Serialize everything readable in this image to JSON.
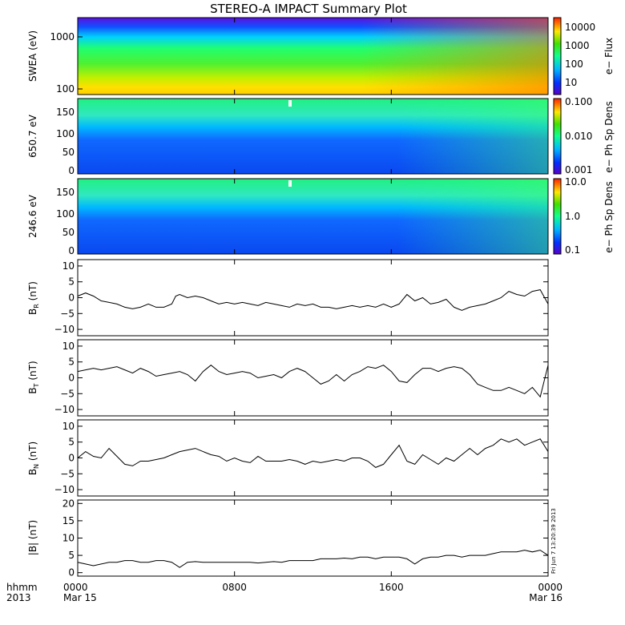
{
  "chart_data": {
    "title": "STEREO-A IMPACT Summary Plot",
    "x_axis": {
      "corner_labels": [
        "hhmm",
        "2013"
      ],
      "ticks": [
        {
          "hhmm": "0000",
          "date": "Mar 15",
          "hour": 0
        },
        {
          "hhmm": "0800",
          "date": "",
          "hour": 8
        },
        {
          "hhmm": "1600",
          "date": "",
          "hour": 16
        },
        {
          "hhmm": "0000",
          "date": "Mar 16",
          "hour": 24
        }
      ],
      "range_hours": [
        0,
        24
      ]
    },
    "timestamp": "Fri Jun  7 13:20:39 2013",
    "panels": [
      {
        "id": "swea",
        "type": "heatmap",
        "ylabel": "SWEA (eV)",
        "yscale": "log",
        "ylim": [
          90,
          2000
        ],
        "yticks": [
          "1000",
          "100"
        ],
        "colorbar": {
          "label": "e− Flux",
          "scale": "log",
          "range": [
            3,
            30000
          ],
          "ticks": [
            "10000",
            "1000",
            "100",
            "10"
          ]
        }
      },
      {
        "id": "pad-650",
        "type": "heatmap",
        "ylabel": "650.7 eV",
        "yscale": "linear",
        "ylim": [
          0,
          180
        ],
        "yticks": [
          "150",
          "100",
          "50",
          "0"
        ],
        "colorbar": {
          "label": "e− Ph Sp Dens",
          "scale": "log",
          "range": [
            0.001,
            0.1
          ],
          "ticks": [
            "0.100",
            "0.010",
            "0.001"
          ]
        }
      },
      {
        "id": "pad-246",
        "type": "heatmap",
        "ylabel": "246.6 eV",
        "yscale": "linear",
        "ylim": [
          0,
          180
        ],
        "yticks": [
          "150",
          "100",
          "50",
          "0"
        ],
        "colorbar": {
          "label": "e− Ph Sp Dens",
          "scale": "log",
          "range": [
            0.1,
            10
          ],
          "ticks": [
            "10.0",
            "1.0",
            "0.1"
          ]
        }
      },
      {
        "id": "br",
        "type": "line",
        "ylabel_main": "B",
        "ylabel_sub": "R",
        "ylabel_unit": "(nT)",
        "ylim": [
          -12,
          12
        ],
        "yticks": [
          "10",
          "5",
          "0",
          "−5",
          "−10"
        ],
        "x": [
          0,
          0.4,
          0.8,
          1.2,
          1.6,
          2.0,
          2.4,
          2.8,
          3.2,
          3.6,
          4.0,
          4.4,
          4.8,
          5.0,
          5.2,
          5.6,
          6.0,
          6.4,
          6.8,
          7.2,
          7.6,
          8.0,
          8.4,
          8.8,
          9.2,
          9.6,
          10.0,
          10.4,
          10.8,
          11.2,
          11.6,
          12.0,
          12.4,
          12.8,
          13.2,
          13.6,
          14.0,
          14.4,
          14.8,
          15.2,
          15.6,
          16.0,
          16.4,
          16.8,
          17.2,
          17.6,
          18.0,
          18.4,
          18.8,
          19.2,
          19.6,
          20.0,
          20.4,
          20.8,
          21.2,
          21.6,
          22.0,
          22.4,
          22.8,
          23.2,
          23.6,
          24.0
        ],
        "y": [
          0.5,
          1.5,
          0.5,
          -1,
          -1.5,
          -2,
          -3,
          -3.5,
          -3,
          -2,
          -3,
          -3,
          -2,
          0.5,
          1,
          0,
          0.5,
          0,
          -1,
          -2,
          -1.5,
          -2,
          -1.5,
          -2,
          -2.5,
          -1.5,
          -2,
          -2.5,
          -3,
          -2,
          -2.5,
          -2,
          -3,
          -3,
          -3.5,
          -3,
          -2.5,
          -3,
          -2.5,
          -3,
          -2,
          -3,
          -2,
          1,
          -1,
          0,
          -2,
          -1.5,
          -0.5,
          -3,
          -4,
          -3,
          -2.5,
          -2,
          -1,
          0,
          2,
          1,
          0.5,
          2,
          2.5,
          -2
        ]
      },
      {
        "id": "bt",
        "type": "line",
        "ylabel_main": "B",
        "ylabel_sub": "T",
        "ylabel_unit": "(nT)",
        "ylim": [
          -12,
          12
        ],
        "yticks": [
          "10",
          "5",
          "0",
          "−5",
          "−10"
        ],
        "x": [
          0,
          0.4,
          0.8,
          1.2,
          1.6,
          2.0,
          2.4,
          2.8,
          3.2,
          3.6,
          4.0,
          4.4,
          4.8,
          5.2,
          5.6,
          6.0,
          6.4,
          6.8,
          7.2,
          7.6,
          8.0,
          8.4,
          8.8,
          9.2,
          9.6,
          10.0,
          10.4,
          10.8,
          11.2,
          11.6,
          12.0,
          12.4,
          12.8,
          13.2,
          13.6,
          14.0,
          14.4,
          14.8,
          15.2,
          15.6,
          16.0,
          16.4,
          16.8,
          17.2,
          17.6,
          18.0,
          18.4,
          18.8,
          19.2,
          19.6,
          20.0,
          20.4,
          20.8,
          21.2,
          21.6,
          22.0,
          22.4,
          22.8,
          23.2,
          23.6,
          23.8,
          24.0
        ],
        "y": [
          2,
          2.5,
          3,
          2.5,
          3,
          3.5,
          2.5,
          1.5,
          3,
          2,
          0.5,
          1,
          1.5,
          2,
          1,
          -1,
          2,
          4,
          2,
          1,
          1.5,
          2,
          1.5,
          0,
          0.5,
          1,
          0,
          2,
          3,
          2,
          0,
          -2,
          -1,
          1,
          -1,
          1,
          2,
          3.5,
          3,
          4,
          2,
          -1,
          -1.5,
          1,
          3,
          3,
          2,
          3,
          3.5,
          3,
          1,
          -2,
          -3,
          -4,
          -4,
          -3,
          -4,
          -5,
          -3,
          -6,
          -1,
          4
        ]
      },
      {
        "id": "bn",
        "type": "line",
        "ylabel_main": "B",
        "ylabel_sub": "N",
        "ylabel_unit": "(nT)",
        "ylim": [
          -12,
          12
        ],
        "yticks": [
          "10",
          "5",
          "0",
          "−5",
          "−10"
        ],
        "x": [
          0,
          0.4,
          0.8,
          1.2,
          1.6,
          2.0,
          2.4,
          2.8,
          3.2,
          3.6,
          4.0,
          4.4,
          4.8,
          5.2,
          5.6,
          6.0,
          6.4,
          6.8,
          7.2,
          7.6,
          8.0,
          8.4,
          8.8,
          9.2,
          9.6,
          10.0,
          10.4,
          10.8,
          11.2,
          11.6,
          12.0,
          12.4,
          12.8,
          13.2,
          13.6,
          14.0,
          14.4,
          14.8,
          15.2,
          15.6,
          16.0,
          16.4,
          16.8,
          17.2,
          17.6,
          18.0,
          18.4,
          18.8,
          19.2,
          19.6,
          20.0,
          20.4,
          20.8,
          21.2,
          21.6,
          22.0,
          22.4,
          22.8,
          23.2,
          23.6,
          24.0
        ],
        "y": [
          0,
          2,
          0.5,
          0,
          3,
          0.5,
          -2,
          -2.5,
          -1,
          -1,
          -0.5,
          0,
          1,
          2,
          2.5,
          3,
          2,
          1,
          0.5,
          -1,
          0,
          -1,
          -1.5,
          0.5,
          -1,
          -1,
          -1,
          -0.5,
          -1,
          -2,
          -1,
          -1.5,
          -1,
          -0.5,
          -1,
          0,
          0,
          -1,
          -3,
          -2,
          1,
          4,
          -1,
          -2,
          1,
          -0.5,
          -2,
          0,
          -1,
          1,
          3,
          1,
          3,
          4,
          6,
          5,
          6,
          4,
          5,
          6,
          2
        ]
      },
      {
        "id": "bmag",
        "type": "line",
        "ylabel_main": "|B| (nT)",
        "ylim": [
          -1,
          21
        ],
        "yticks": [
          "20",
          "15",
          "10",
          "5",
          "0"
        ],
        "x": [
          0,
          0.4,
          0.8,
          1.2,
          1.6,
          2.0,
          2.4,
          2.8,
          3.2,
          3.6,
          4.0,
          4.4,
          4.8,
          5.2,
          5.6,
          6.0,
          6.4,
          6.8,
          7.2,
          7.6,
          8.0,
          8.4,
          8.8,
          9.2,
          9.6,
          10.0,
          10.4,
          10.8,
          11.2,
          11.6,
          12.0,
          12.4,
          12.8,
          13.2,
          13.6,
          14.0,
          14.4,
          14.8,
          15.2,
          15.6,
          16.0,
          16.4,
          16.8,
          17.2,
          17.6,
          18.0,
          18.4,
          18.8,
          19.2,
          19.6,
          20.0,
          20.4,
          20.8,
          21.2,
          21.6,
          22.0,
          22.4,
          22.8,
          23.2,
          23.6,
          24.0
        ],
        "y": [
          3,
          2.5,
          2,
          2.5,
          3,
          3,
          3.5,
          3.5,
          3,
          3,
          3.5,
          3.5,
          3,
          1.5,
          3,
          3.2,
          3,
          3,
          3,
          3,
          3,
          3,
          3,
          2.8,
          3,
          3.2,
          3,
          3.5,
          3.5,
          3.5,
          3.5,
          4,
          4,
          4,
          4.2,
          4,
          4.5,
          4.5,
          4,
          4.5,
          4.5,
          4.5,
          4,
          2.5,
          4,
          4.5,
          4.5,
          5,
          5,
          4.5,
          5,
          5,
          5,
          5.5,
          6,
          6,
          6,
          6.5,
          6,
          6.5,
          5
        ]
      }
    ]
  }
}
